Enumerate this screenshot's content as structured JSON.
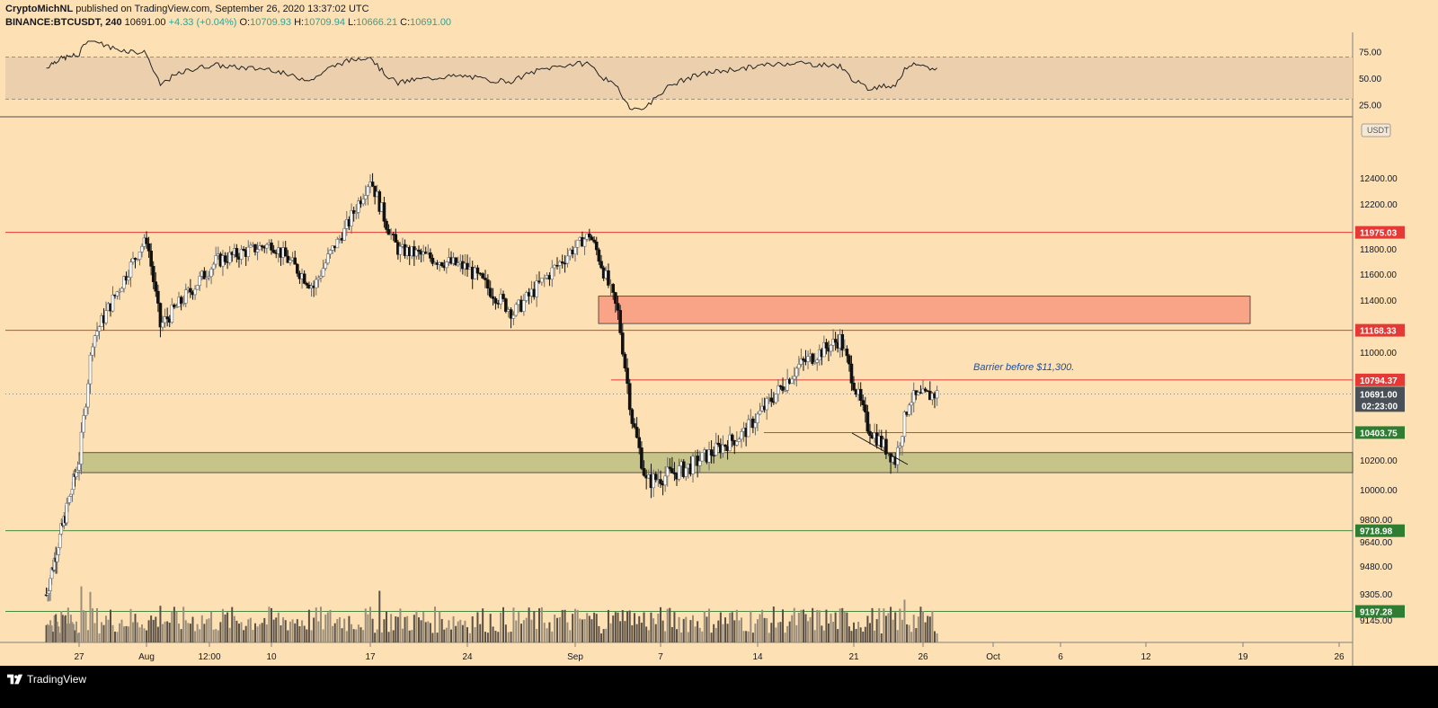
{
  "header": {
    "publisher": "CryptoMichNL",
    "published_text": "published on TradingView.com, September 26, 2020 13:37:02 UTC",
    "symbol": "BINANCE:BTCUSDT, 240",
    "last": "10691.00",
    "change": "+4.33 (+0.04%)",
    "o_label": "O:",
    "o": "10709.93",
    "h_label": "H:",
    "h": "10709.94",
    "l_label": "L:",
    "l": "10666.21",
    "c_label": "C:",
    "c": "10691.00"
  },
  "footer": {
    "brand": "TradingView"
  },
  "colors": {
    "background": "#fde1b4",
    "resistance": "#e53935",
    "support": "#2e7d32",
    "resistance_zone": "#f9a487",
    "support_zone": "#c7c489",
    "rsi_band": "#ecd0ad",
    "price_badge": "#4a5057"
  },
  "chart_data": [
    {
      "type": "line",
      "panel": "rsi",
      "y_ticks": [
        "75.00",
        "50.00",
        "25.00"
      ],
      "bands": [
        30,
        70
      ],
      "ylim": [
        15,
        90
      ]
    },
    {
      "type": "candlestick",
      "panel": "price",
      "unit_label": "USDT",
      "y_ticks": [
        "12400.00",
        "12200.00",
        "12000.00",
        "11800.00",
        "11600.00",
        "11400.00",
        "11000.00",
        "10200.00",
        "10000.00",
        "9800.00",
        "9640.00",
        "9480.00",
        "9305.00",
        "9145.00"
      ],
      "x_ticks": [
        "27",
        "Aug",
        "12:00",
        "10",
        "17",
        "24",
        "Sep",
        "7",
        "14",
        "21",
        "26",
        "Oct",
        "6",
        "12",
        "19",
        "26"
      ],
      "ylim": [
        9060,
        12700
      ],
      "current_price": "10691.00",
      "countdown": "02:23:00",
      "levels": [
        {
          "value": "11975.03",
          "kind": "resistance"
        },
        {
          "value": "11168.33",
          "kind": "resistance"
        },
        {
          "value": "10794.37",
          "kind": "resistance"
        },
        {
          "value": "10403.75",
          "kind": "support"
        },
        {
          "value": "9718.98",
          "kind": "support"
        },
        {
          "value": "9197.28",
          "kind": "support"
        }
      ],
      "zones": [
        {
          "from": 11220,
          "to": 11430,
          "kind": "resistance"
        },
        {
          "from": 10115,
          "to": 10255,
          "kind": "support"
        }
      ],
      "annotation": "Barrier before $11,300.",
      "ohlc_keypoints": [
        [
          "Jul 23",
          9300
        ],
        [
          "Jul 27",
          10200
        ],
        [
          "Jul 28",
          11100
        ],
        [
          "Aug 1",
          11900
        ],
        [
          "Aug 2",
          11200
        ],
        [
          "Aug 6",
          11700
        ],
        [
          "Aug 10",
          11850
        ],
        [
          "Aug 13",
          11500
        ],
        [
          "Aug 17",
          12400
        ],
        [
          "Aug 19",
          11800
        ],
        [
          "Aug 24",
          11650
        ],
        [
          "Aug 27",
          11300
        ],
        [
          "Sep 1",
          11950
        ],
        [
          "Sep 3",
          11300
        ],
        [
          "Sep 4",
          10500
        ],
        [
          "Sep 5",
          10050
        ],
        [
          "Sep 8",
          10150
        ],
        [
          "Sep 12",
          10400
        ],
        [
          "Sep 16",
          10900
        ],
        [
          "Sep 19",
          11100
        ],
        [
          "Sep 21",
          10450
        ],
        [
          "Sep 23",
          10200
        ],
        [
          "Sep 24",
          10650
        ],
        [
          "Sep 26",
          10691
        ]
      ]
    }
  ]
}
